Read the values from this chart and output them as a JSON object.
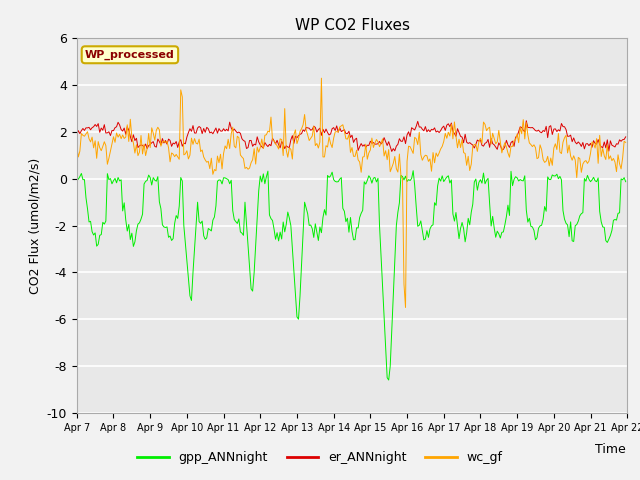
{
  "title": "WP CO2 Fluxes",
  "xlabel": "Time",
  "ylabel": "CO2 Flux (umol/m2/s)",
  "ylim": [
    -10,
    6
  ],
  "yticks": [
    -10,
    -8,
    -6,
    -4,
    -2,
    0,
    2,
    4,
    6
  ],
  "x_labels": [
    "Apr 7",
    "Apr 8",
    "Apr 9",
    "Apr 10",
    "Apr 11",
    "Apr 12",
    "Apr 13",
    "Apr 14",
    "Apr 15",
    "Apr 16",
    "Apr 17",
    "Apr 18",
    "Apr 19",
    "Apr 20",
    "Apr 21",
    "Apr 22"
  ],
  "n_points": 360,
  "background_color": "#e8e8e8",
  "figure_bg": "#f2f2f2",
  "line_colors": {
    "gpp": "#00ee00",
    "er": "#dd0000",
    "wc": "#ffa500"
  },
  "legend_labels": [
    "gpp_ANNnight",
    "er_ANNnight",
    "wc_gf"
  ],
  "watermark_text": "WP_processed",
  "watermark_color": "#8b0000",
  "watermark_bg": "#ffffcc",
  "watermark_edge": "#ccaa00"
}
